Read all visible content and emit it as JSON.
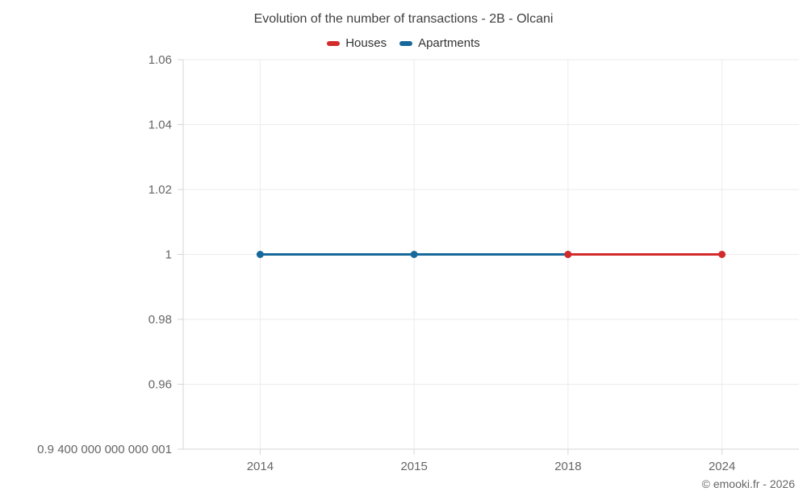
{
  "title": "Evolution of the number of transactions - 2B - Olcani",
  "watermark": "© emooki.fr - 2026",
  "legend": {
    "items": [
      {
        "label": "Houses",
        "color": "#d32b2b"
      },
      {
        "label": "Apartments",
        "color": "#17699b"
      }
    ]
  },
  "chart_data": {
    "type": "line",
    "title": "Evolution of the number of transactions - 2B - Olcani",
    "categories": [
      "2014",
      "2015",
      "2018",
      "2024"
    ],
    "series": [
      {
        "name": "Apartments",
        "color": "#17699b",
        "values": [
          1,
          1,
          1,
          null
        ]
      },
      {
        "name": "Houses",
        "color": "#d32b2b",
        "values": [
          null,
          null,
          1,
          1
        ]
      }
    ],
    "xlabel": "",
    "ylabel": "",
    "ylim": [
      0.94,
      1.06
    ],
    "grid": true,
    "legend_position": "top",
    "y_ticks": [
      {
        "value": 1.06,
        "label": "1.06"
      },
      {
        "value": 1.04,
        "label": "1.04"
      },
      {
        "value": 1.02,
        "label": "1.02"
      },
      {
        "value": 1.0,
        "label": "1"
      },
      {
        "value": 0.98,
        "label": "0.98"
      },
      {
        "value": 0.96,
        "label": "0.96"
      },
      {
        "value": 0.94,
        "label": "0.9 400 000 000 000 001"
      }
    ]
  }
}
